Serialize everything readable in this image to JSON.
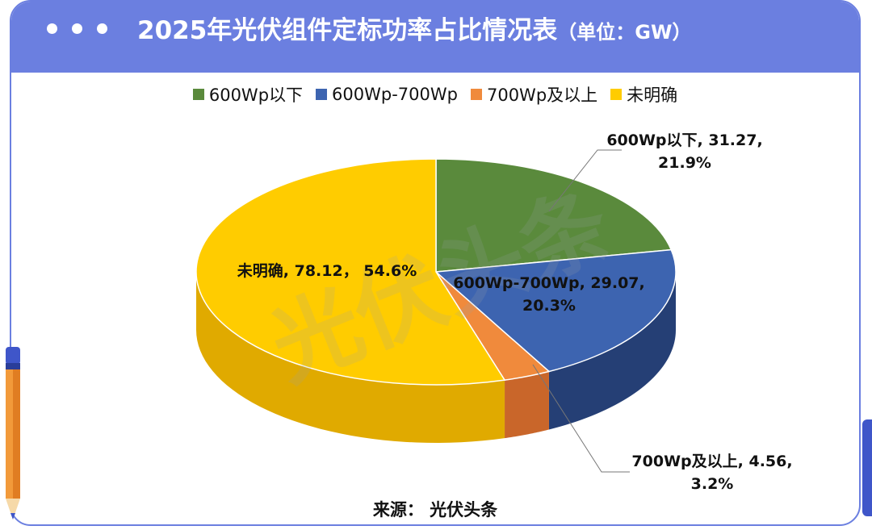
{
  "window": {
    "title": "2025年光伏组件定标功率占比情况表",
    "title_unit": "（单位：GW）"
  },
  "watermark": {
    "text": "光伏头条"
  },
  "source": {
    "text": "来源：  光伏头条"
  },
  "colors": {
    "header": "#6b7fe0",
    "green": "#5a8a3c",
    "blue": "#3d64b0",
    "orange": "#f08a3c",
    "yellow": "#ffcc00"
  },
  "chart_data": {
    "type": "pie",
    "title": "2025年光伏组件定标功率占比情况表",
    "unit": "GW",
    "legend_position": "top",
    "series": [
      {
        "name": "600Wp以下",
        "value": 31.27,
        "percent": "21.9%",
        "label_line1": "600Wp以下, 31.27,",
        "label_line2": "21.9%",
        "color": "#5a8a3c",
        "side_color": "#3f6a26"
      },
      {
        "name": "600Wp-700Wp",
        "value": 29.07,
        "percent": "20.3%",
        "label_line1": "600Wp-700Wp, 29.07,",
        "label_line2": "20.3%",
        "color": "#3d64b0",
        "side_color": "#253f75"
      },
      {
        "name": "700Wp及以上",
        "value": 4.56,
        "percent": "3.2%",
        "label_line1": "700Wp及以上, 4.56,",
        "label_line2": "3.2%",
        "color": "#f08a3c",
        "side_color": "#c9662a"
      },
      {
        "name": "未明确",
        "value": 78.12,
        "percent": "54.6%",
        "label_line1": "未明确, 78.12，  54.6%",
        "label_line2": "",
        "color": "#ffcc00",
        "side_color": "#e0aa00"
      }
    ]
  }
}
